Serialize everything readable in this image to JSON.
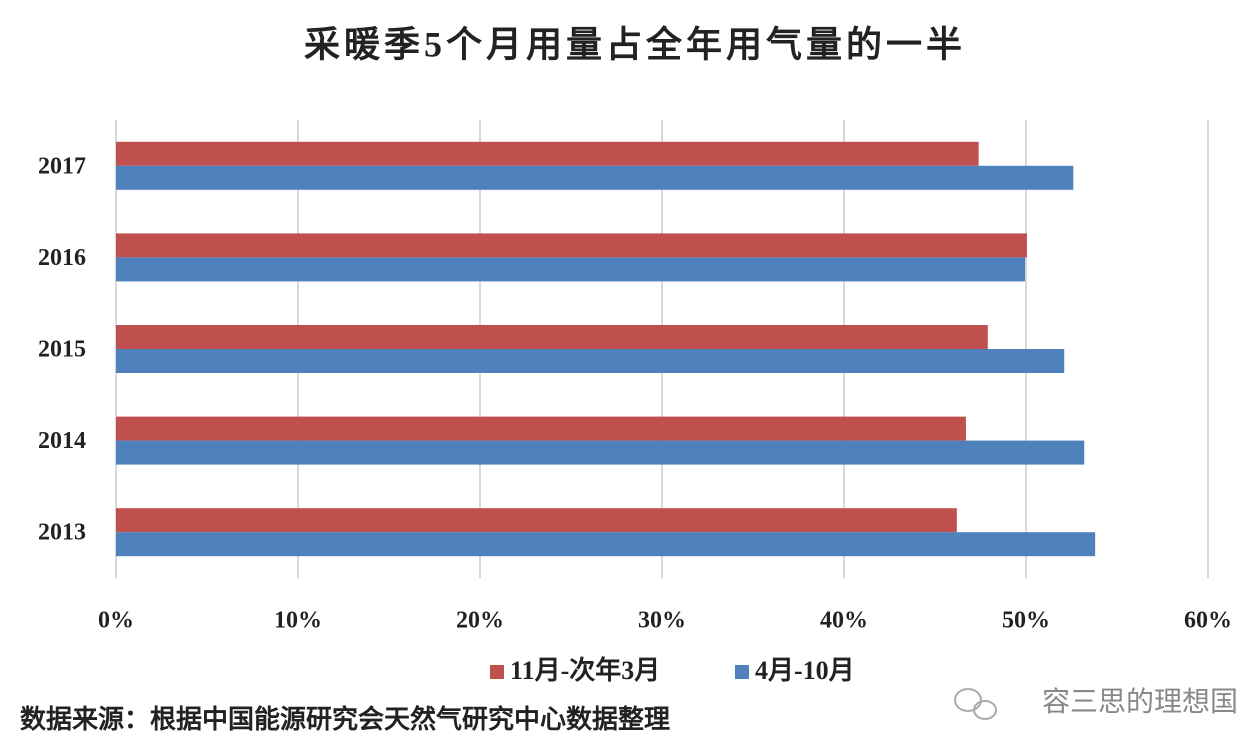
{
  "chart_data": {
    "type": "bar",
    "orientation": "horizontal",
    "title": "采暖季5个月用量占全年用气量的一半",
    "categories": [
      "2017",
      "2016",
      "2015",
      "2014",
      "2013"
    ],
    "series": [
      {
        "name": "11月-次年3月",
        "color": "#c0504d",
        "values": [
          47.4,
          50.05,
          47.9,
          46.7,
          46.2
        ]
      },
      {
        "name": "4月-10月",
        "color": "#4f81bd",
        "values": [
          52.6,
          49.95,
          52.1,
          53.2,
          53.8
        ]
      }
    ],
    "xlim": [
      0,
      60
    ],
    "xticks": [
      {
        "value": 0,
        "label": "0%"
      },
      {
        "value": 10,
        "label": "10%"
      },
      {
        "value": 20,
        "label": "20%"
      },
      {
        "value": 30,
        "label": "30%"
      },
      {
        "value": 40,
        "label": "40%"
      },
      {
        "value": 50,
        "label": "50%"
      },
      {
        "value": 60,
        "label": "60%"
      }
    ],
    "grid": true,
    "legend": "bottom",
    "source": "数据来源：根据中国能源研究会天然气研究中心数据整理",
    "watermark": "容三思的理想国"
  }
}
